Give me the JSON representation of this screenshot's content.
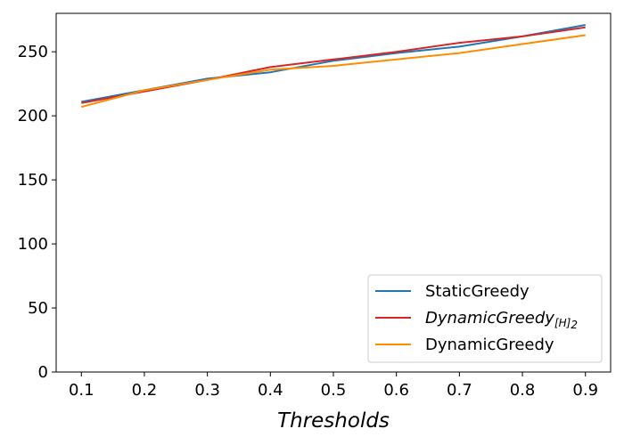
{
  "chart_data": {
    "type": "line",
    "title": "",
    "xlabel": "Thresholds",
    "ylabel": "",
    "x": [
      0.1,
      0.2,
      0.3,
      0.4,
      0.5,
      0.6,
      0.7,
      0.8,
      0.9
    ],
    "x_tick_labels": [
      "0.1",
      "0.2",
      "0.3",
      "0.4",
      "0.5",
      "0.6",
      "0.7",
      "0.8",
      "0.9"
    ],
    "xlim": [
      0.06,
      0.94
    ],
    "ylim": [
      0,
      280
    ],
    "y_ticks": [
      0,
      50,
      100,
      150,
      200,
      250
    ],
    "y_tick_labels": [
      "0",
      "50",
      "100",
      "150",
      "200",
      "250"
    ],
    "grid": false,
    "legend_position": "bottom-right",
    "series": [
      {
        "name": "StaticGreedy",
        "legend_main": "StaticGreedy",
        "legend_sub": "",
        "italic": false,
        "color": "#1f77b4",
        "values": [
          211,
          220,
          229,
          234,
          243,
          249,
          254,
          262,
          271
        ]
      },
      {
        "name": "DynamicGreedy[H]2",
        "legend_main": "DynamicGreedy",
        "legend_sub": "[H]",
        "legend_sub2": "2",
        "italic": true,
        "color": "#d62728",
        "values": [
          210,
          219,
          228,
          238,
          244,
          250,
          257,
          262,
          269
        ]
      },
      {
        "name": "DynamicGreedy",
        "legend_main": "DynamicGreedy",
        "legend_sub": "",
        "italic": false,
        "color": "#ff8c00",
        "values": [
          207,
          220,
          228,
          236,
          239,
          244,
          249,
          256,
          263
        ]
      }
    ]
  }
}
